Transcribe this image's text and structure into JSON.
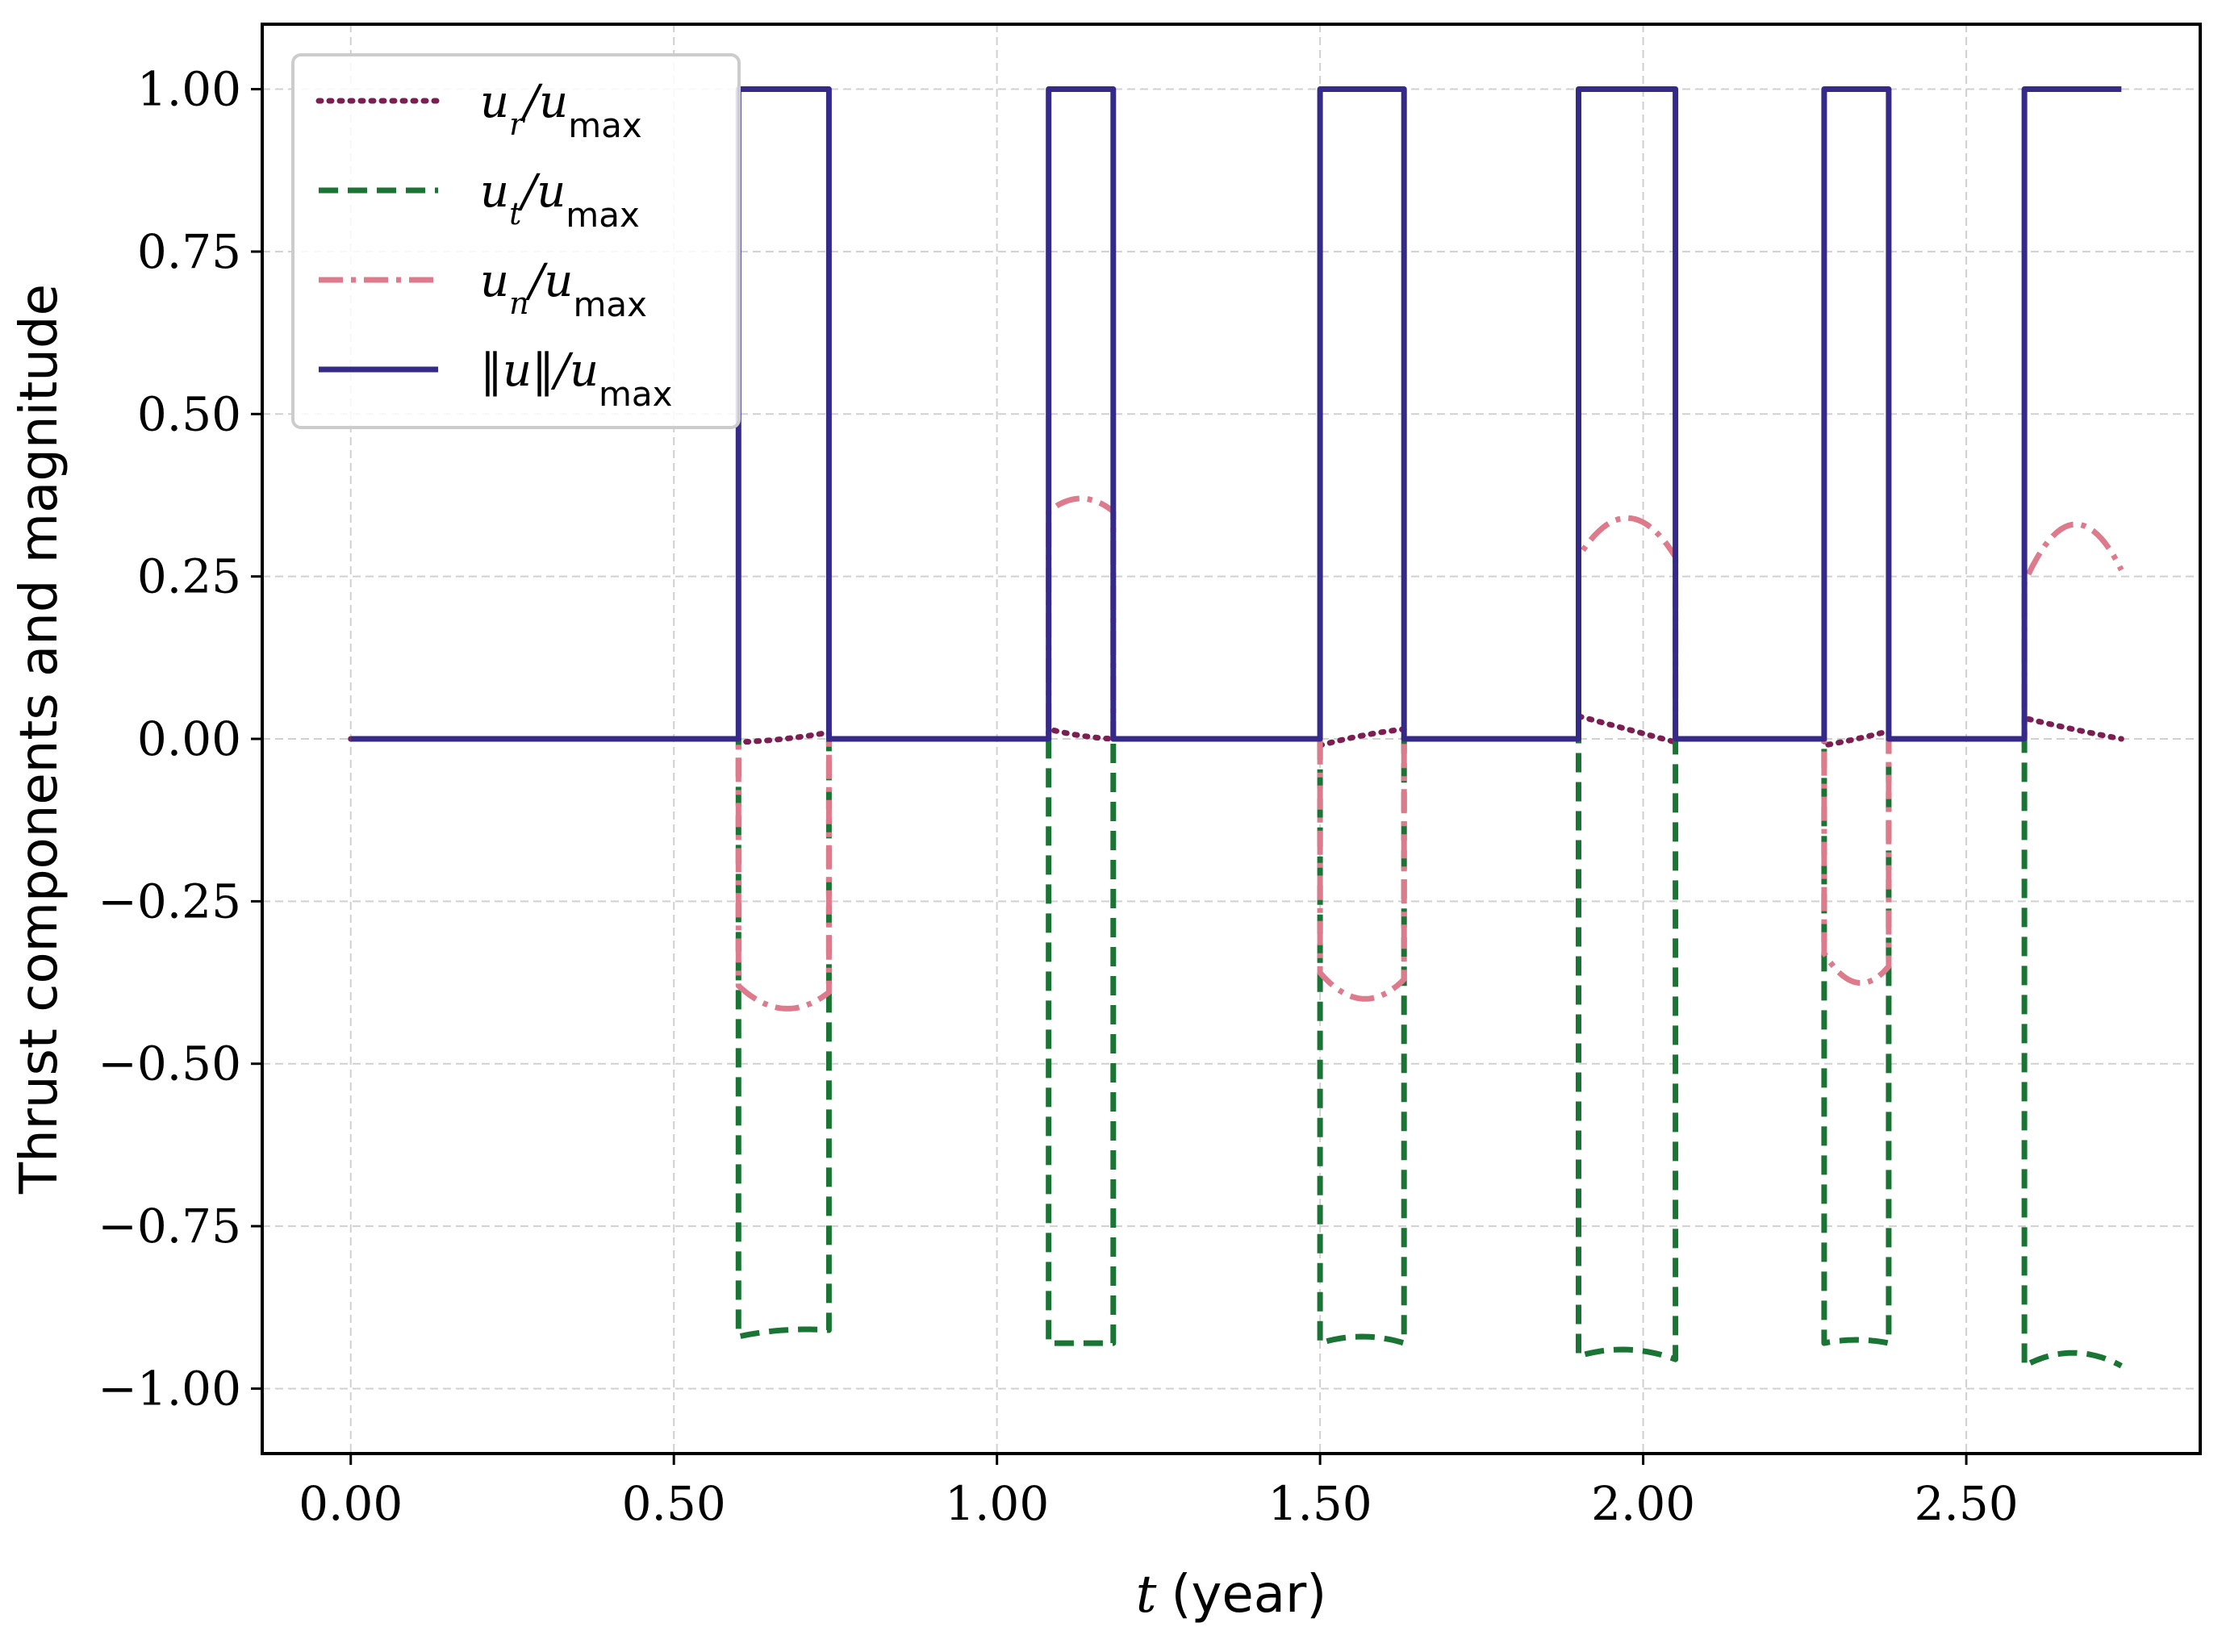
{
  "chart_data": {
    "type": "line",
    "title": "",
    "xlabel": {
      "var": "t",
      "unit": "(year)"
    },
    "ylabel": "Thrust components and magnitude",
    "xlim": [
      -0.137,
      2.862
    ],
    "ylim": [
      -1.1,
      1.1
    ],
    "xticks": [
      0.0,
      0.5,
      1.0,
      1.5,
      2.0,
      2.5
    ],
    "xtick_labels": [
      "0.00",
      "0.50",
      "1.00",
      "1.50",
      "2.00",
      "2.50"
    ],
    "yticks": [
      1.0,
      0.75,
      0.5,
      0.25,
      0.0,
      -0.25,
      -0.5,
      -0.75,
      -1.0
    ],
    "ytick_labels": [
      "1.00",
      "0.75",
      "0.50",
      "0.25",
      "0.00",
      "−0.25",
      "−0.50",
      "−0.75",
      "−1.00"
    ],
    "grid": true,
    "legend_position": "top-left",
    "burns": [
      {
        "start": 0.6,
        "end": 0.74,
        "ur": [
          -0.005,
          0.0,
          0.01
        ],
        "ut": [
          -0.92,
          -0.91,
          -0.91
        ],
        "un": [
          -0.38,
          -0.415,
          -0.39
        ]
      },
      {
        "start": 1.08,
        "end": 1.18,
        "ur": [
          0.015,
          0.005,
          0.0
        ],
        "ut": [
          -0.93,
          -0.93,
          -0.93
        ],
        "un": [
          0.35,
          0.37,
          0.35
        ]
      },
      {
        "start": 1.5,
        "end": 1.63,
        "ur": [
          -0.01,
          0.005,
          0.015
        ],
        "ut": [
          -0.93,
          -0.92,
          -0.93
        ],
        "un": [
          -0.36,
          -0.4,
          -0.37
        ]
      },
      {
        "start": 1.9,
        "end": 2.05,
        "ur": [
          0.035,
          0.015,
          -0.005
        ],
        "ut": [
          -0.95,
          -0.94,
          -0.955
        ],
        "un": [
          0.28,
          0.34,
          0.28
        ]
      },
      {
        "start": 2.28,
        "end": 2.38,
        "ur": [
          -0.01,
          0.0,
          0.012
        ],
        "ut": [
          -0.93,
          -0.925,
          -0.93
        ],
        "un": [
          -0.33,
          -0.375,
          -0.35
        ]
      },
      {
        "start": 2.59,
        "end": 2.74,
        "ur": [
          0.032,
          0.015,
          0.0
        ],
        "ut": [
          -0.965,
          -0.945,
          -0.965
        ],
        "un": [
          0.24,
          0.33,
          0.26
        ]
      }
    ],
    "series": [
      {
        "name": "u_r/u_max",
        "label_var": "u",
        "label_sub": "r",
        "label_den": "/u",
        "label_den_sub": "max",
        "color": "#7b1f52",
        "dash": "dotted"
      },
      {
        "name": "u_t/u_max",
        "label_var": "u",
        "label_sub": "t",
        "label_den": "/u",
        "label_den_sub": "max",
        "color": "#1a7535",
        "dash": "dashed"
      },
      {
        "name": "u_n/u_max",
        "label_var": "u",
        "label_sub": "n",
        "label_den": "/u",
        "label_den_sub": "max",
        "color": "#dd7b8c",
        "dash": "dashdot"
      },
      {
        "name": "||u||/u_max",
        "label_var": "‖u‖",
        "label_sub": "",
        "label_den": "/u",
        "label_den_sub": "max",
        "color": "#352a87",
        "dash": "solid"
      }
    ]
  }
}
